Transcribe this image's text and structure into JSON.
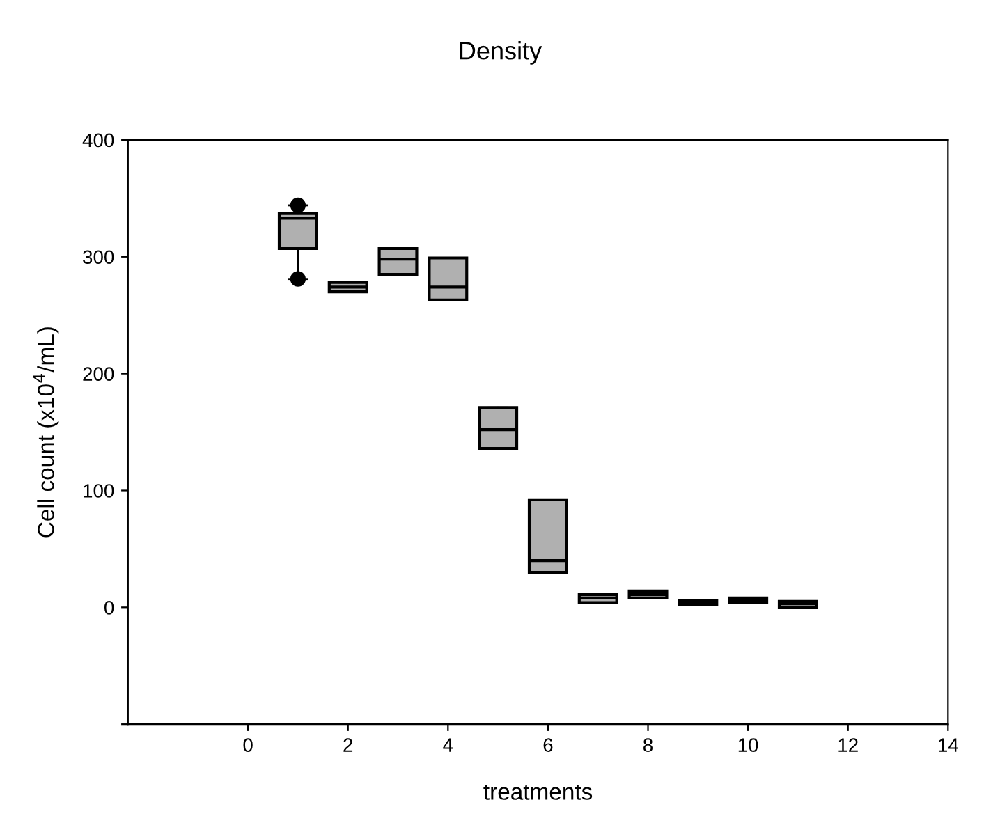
{
  "chart_data": {
    "type": "box",
    "title": "Density",
    "xlabel": "treatments",
    "ylabel": "Cell count (x10$^{4}$/mL)",
    "x": [
      1,
      2,
      3,
      4,
      5,
      6,
      7,
      8,
      9,
      10,
      11
    ],
    "color": "#b0b0b0",
    "boxes": [
      {
        "low": 281,
        "q1": 307,
        "median": 333,
        "q3": 337,
        "high": 344,
        "outliers": [
          281,
          344
        ]
      },
      {
        "low": 270,
        "q1": 270,
        "median": 274,
        "q3": 278,
        "high": 278
      },
      {
        "low": 285,
        "q1": 285,
        "median": 298,
        "q3": 307,
        "high": 307
      },
      {
        "low": 263,
        "q1": 263,
        "median": 274,
        "q3": 299,
        "high": 299
      },
      {
        "low": 136,
        "q1": 136,
        "median": 152,
        "q3": 171,
        "high": 171
      },
      {
        "low": 30,
        "q1": 30,
        "median": 40,
        "q3": 92,
        "high": 92
      },
      {
        "low": 4,
        "q1": 4,
        "median": 8,
        "q3": 11,
        "high": 11
      },
      {
        "low": 8,
        "q1": 8,
        "median": 11,
        "q3": 14,
        "high": 14
      },
      {
        "low": 2,
        "q1": 2,
        "median": 4,
        "q3": 6,
        "high": 6
      },
      {
        "low": 4,
        "q1": 4,
        "median": 6,
        "q3": 8,
        "high": 8
      },
      {
        "low": 0,
        "q1": 0,
        "median": 3,
        "q3": 5,
        "high": 5
      }
    ],
    "xlim": [
      -2.4,
      14
    ],
    "xticks": [
      0,
      2,
      4,
      6,
      8,
      10,
      12,
      14
    ],
    "ylim": [
      -100,
      400
    ],
    "yticks": [
      {
        "value": -100,
        "label": null
      },
      0,
      100,
      200,
      300,
      400
    ],
    "grid": false
  }
}
